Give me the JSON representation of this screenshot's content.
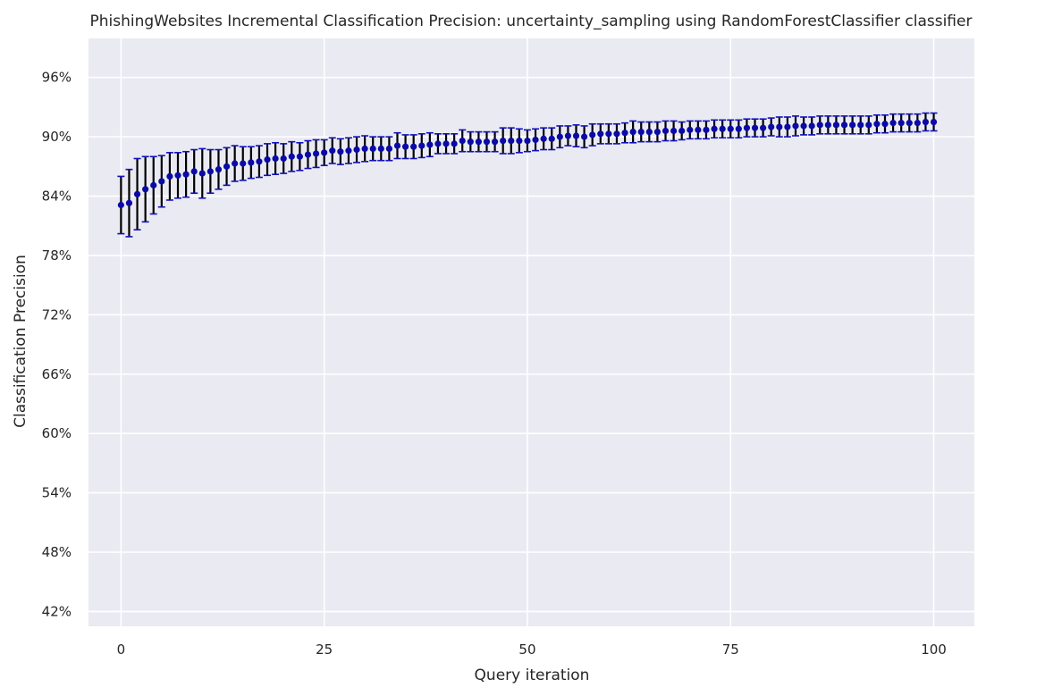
{
  "chart_data": {
    "type": "scatter",
    "title": "PhishingWebsites Incremental Classification Precision: uncertainty_sampling using RandomForestClassifier classifier",
    "xlabel": "Query iteration",
    "ylabel": "Classification Precision",
    "xlim": [
      -4,
      105
    ],
    "ylim": [
      0.405,
      0.9995
    ],
    "x_ticks": [
      0,
      25,
      50,
      75,
      100
    ],
    "x_tick_labels": [
      "0",
      "25",
      "50",
      "75",
      "100"
    ],
    "y_ticks": [
      0.42,
      0.48,
      0.54,
      0.6,
      0.66,
      0.72,
      0.78,
      0.84,
      0.9,
      0.96
    ],
    "y_tick_labels": [
      "42%",
      "48%",
      "54%",
      "60%",
      "66%",
      "72%",
      "78%",
      "84%",
      "90%",
      "96%"
    ],
    "grid": true,
    "colors": {
      "background": "#eaeaf2",
      "grid": "#ffffff",
      "marker": "#0a0aa8",
      "error_bar": "#000000",
      "cap": "#1010c0"
    },
    "series": [
      {
        "x": [
          0,
          1,
          2,
          3,
          4,
          5,
          6,
          7,
          8,
          9,
          10,
          11,
          12,
          13,
          14,
          15,
          16,
          17,
          18,
          19,
          20,
          21,
          22,
          23,
          24,
          25,
          26,
          27,
          28,
          29,
          30,
          31,
          32,
          33,
          34,
          35,
          36,
          37,
          38,
          39,
          40,
          41,
          42,
          43,
          44,
          45,
          46,
          47,
          48,
          49,
          50,
          51,
          52,
          53,
          54,
          55,
          56,
          57,
          58,
          59,
          60,
          61,
          62,
          63,
          64,
          65,
          66,
          67,
          68,
          69,
          70,
          71,
          72,
          73,
          74,
          75,
          76,
          77,
          78,
          79,
          80,
          81,
          82,
          83,
          84,
          85,
          86,
          87,
          88,
          89,
          90,
          91,
          92,
          93,
          94,
          95,
          96,
          97,
          98,
          99,
          100
        ],
        "y": [
          0.831,
          0.833,
          0.842,
          0.847,
          0.851,
          0.855,
          0.86,
          0.861,
          0.862,
          0.865,
          0.863,
          0.865,
          0.867,
          0.87,
          0.873,
          0.873,
          0.874,
          0.875,
          0.877,
          0.878,
          0.878,
          0.88,
          0.88,
          0.882,
          0.883,
          0.884,
          0.886,
          0.885,
          0.886,
          0.887,
          0.888,
          0.888,
          0.888,
          0.888,
          0.891,
          0.89,
          0.89,
          0.891,
          0.892,
          0.893,
          0.893,
          0.893,
          0.896,
          0.895,
          0.895,
          0.895,
          0.895,
          0.896,
          0.896,
          0.896,
          0.896,
          0.897,
          0.898,
          0.898,
          0.9,
          0.901,
          0.901,
          0.9,
          0.902,
          0.903,
          0.903,
          0.903,
          0.904,
          0.905,
          0.905,
          0.905,
          0.905,
          0.906,
          0.906,
          0.906,
          0.907,
          0.907,
          0.907,
          0.908,
          0.908,
          0.908,
          0.908,
          0.909,
          0.909,
          0.909,
          0.91,
          0.91,
          0.91,
          0.911,
          0.911,
          0.911,
          0.912,
          0.912,
          0.912,
          0.912,
          0.912,
          0.912,
          0.912,
          0.913,
          0.913,
          0.914,
          0.914,
          0.914,
          0.914,
          0.915,
          0.915
        ],
        "error": [
          0.029,
          0.034,
          0.036,
          0.033,
          0.029,
          0.026,
          0.024,
          0.023,
          0.023,
          0.022,
          0.025,
          0.022,
          0.02,
          0.019,
          0.018,
          0.017,
          0.016,
          0.016,
          0.016,
          0.016,
          0.015,
          0.015,
          0.014,
          0.014,
          0.014,
          0.013,
          0.013,
          0.013,
          0.013,
          0.013,
          0.013,
          0.012,
          0.012,
          0.012,
          0.013,
          0.012,
          0.012,
          0.012,
          0.012,
          0.01,
          0.01,
          0.01,
          0.011,
          0.01,
          0.01,
          0.01,
          0.01,
          0.013,
          0.013,
          0.012,
          0.011,
          0.011,
          0.011,
          0.011,
          0.011,
          0.01,
          0.011,
          0.011,
          0.011,
          0.01,
          0.01,
          0.01,
          0.01,
          0.011,
          0.01,
          0.01,
          0.01,
          0.01,
          0.01,
          0.009,
          0.009,
          0.009,
          0.009,
          0.009,
          0.009,
          0.009,
          0.009,
          0.009,
          0.009,
          0.009,
          0.009,
          0.01,
          0.01,
          0.01,
          0.009,
          0.009,
          0.009,
          0.009,
          0.009,
          0.009,
          0.009,
          0.009,
          0.009,
          0.009,
          0.009,
          0.009,
          0.009,
          0.009,
          0.009,
          0.009,
          0.009
        ]
      }
    ]
  }
}
